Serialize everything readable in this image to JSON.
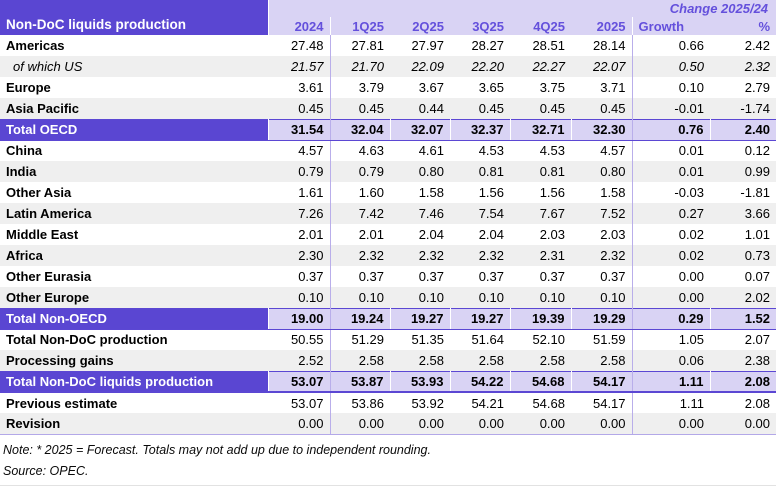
{
  "colors": {
    "purple": "#5A46D2",
    "lavender": "#D9D3F4",
    "stripe": "#EFEFEF",
    "header-text": "#6450DC",
    "separator": "#B9AEEA",
    "total-border": "#5B47D3",
    "bottom-line": "#B3A8E8"
  },
  "table": {
    "title": "Non-DoC liquids production",
    "change_header": "Change 2025/24",
    "columns": [
      "2024",
      "1Q25",
      "2Q25",
      "3Q25",
      "4Q25",
      "2025",
      "Growth",
      "%"
    ],
    "rows": [
      {
        "label": "Americas",
        "style": "normal",
        "values": [
          "27.48",
          "27.81",
          "27.97",
          "28.27",
          "28.51",
          "28.14",
          "0.66",
          "2.42"
        ]
      },
      {
        "label": "of which US",
        "style": "italic",
        "values": [
          "21.57",
          "21.70",
          "22.09",
          "22.20",
          "22.27",
          "22.07",
          "0.50",
          "2.32"
        ]
      },
      {
        "label": "Europe",
        "style": "normal",
        "values": [
          "3.61",
          "3.79",
          "3.67",
          "3.65",
          "3.75",
          "3.71",
          "0.10",
          "2.79"
        ]
      },
      {
        "label": "Asia Pacific",
        "style": "normal",
        "values": [
          "0.45",
          "0.45",
          "0.44",
          "0.45",
          "0.45",
          "0.45",
          "-0.01",
          "-1.74"
        ]
      },
      {
        "label": "Total OECD",
        "style": "total",
        "values": [
          "31.54",
          "32.04",
          "32.07",
          "32.37",
          "32.71",
          "32.30",
          "0.76",
          "2.40"
        ]
      },
      {
        "label": "China",
        "style": "normal",
        "values": [
          "4.57",
          "4.63",
          "4.61",
          "4.53",
          "4.53",
          "4.57",
          "0.01",
          "0.12"
        ]
      },
      {
        "label": "India",
        "style": "normal",
        "values": [
          "0.79",
          "0.79",
          "0.80",
          "0.81",
          "0.81",
          "0.80",
          "0.01",
          "0.99"
        ]
      },
      {
        "label": "Other Asia",
        "style": "normal",
        "values": [
          "1.61",
          "1.60",
          "1.58",
          "1.56",
          "1.56",
          "1.58",
          "-0.03",
          "-1.81"
        ]
      },
      {
        "label": "Latin America",
        "style": "normal",
        "values": [
          "7.26",
          "7.42",
          "7.46",
          "7.54",
          "7.67",
          "7.52",
          "0.27",
          "3.66"
        ]
      },
      {
        "label": "Middle East",
        "style": "normal",
        "values": [
          "2.01",
          "2.01",
          "2.04",
          "2.04",
          "2.03",
          "2.03",
          "0.02",
          "1.01"
        ]
      },
      {
        "label": "Africa",
        "style": "normal",
        "values": [
          "2.30",
          "2.32",
          "2.32",
          "2.32",
          "2.31",
          "2.32",
          "0.02",
          "0.73"
        ]
      },
      {
        "label": "Other Eurasia",
        "style": "normal",
        "values": [
          "0.37",
          "0.37",
          "0.37",
          "0.37",
          "0.37",
          "0.37",
          "0.00",
          "0.07"
        ]
      },
      {
        "label": "Other Europe",
        "style": "normal",
        "values": [
          "0.10",
          "0.10",
          "0.10",
          "0.10",
          "0.10",
          "0.10",
          "0.00",
          "2.02"
        ]
      },
      {
        "label": "Total Non-OECD",
        "style": "total",
        "values": [
          "19.00",
          "19.24",
          "19.27",
          "19.27",
          "19.39",
          "19.29",
          "0.29",
          "1.52"
        ]
      },
      {
        "label": "Total Non-DoC production",
        "style": "normal",
        "values": [
          "50.55",
          "51.29",
          "51.35",
          "51.64",
          "52.10",
          "51.59",
          "1.05",
          "2.07"
        ]
      },
      {
        "label": "Processing gains",
        "style": "normal",
        "values": [
          "2.52",
          "2.58",
          "2.58",
          "2.58",
          "2.58",
          "2.58",
          "0.06",
          "2.38"
        ]
      },
      {
        "label": "Total Non-DoC liquids production",
        "style": "total",
        "grand": true,
        "values": [
          "53.07",
          "53.87",
          "53.93",
          "54.22",
          "54.68",
          "54.17",
          "1.11",
          "2.08"
        ]
      },
      {
        "label": "Previous estimate",
        "style": "normal",
        "values": [
          "53.07",
          "53.86",
          "53.92",
          "54.21",
          "54.68",
          "54.17",
          "1.11",
          "2.08"
        ]
      },
      {
        "label": "Revision",
        "style": "normal",
        "values": [
          "0.00",
          "0.00",
          "0.00",
          "0.00",
          "0.00",
          "0.00",
          "0.00",
          "0.00"
        ]
      }
    ],
    "note": "Note: * 2025 = Forecast. Totals may not add up due to independent rounding.",
    "source": "Source: OPEC."
  }
}
